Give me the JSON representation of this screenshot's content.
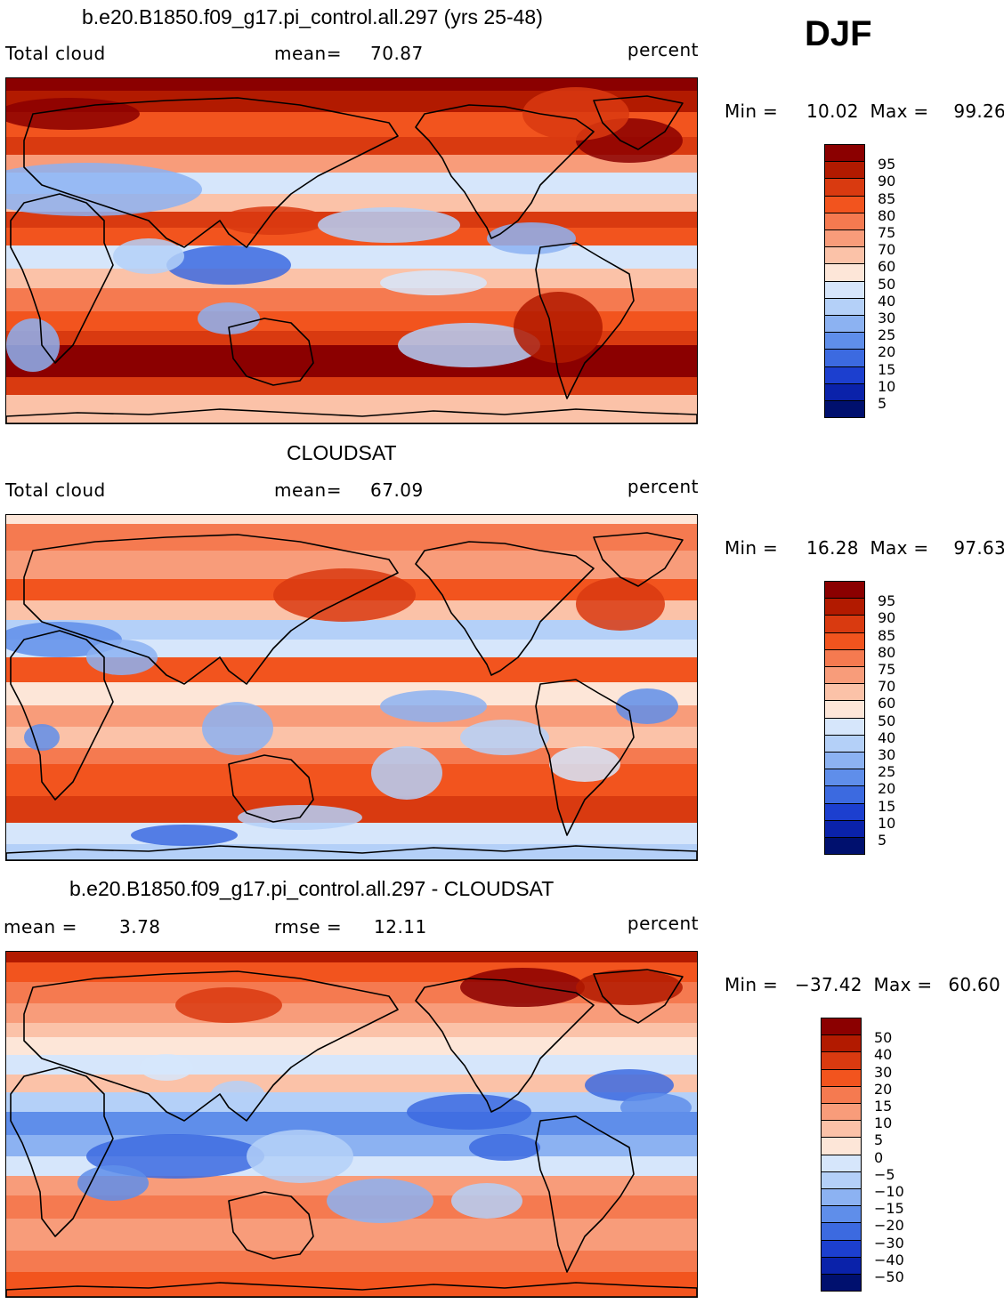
{
  "season": "DJF",
  "panels": [
    {
      "title": "b.e20.B1850.f09_g17.pi_control.all.297 (yrs 25-48)",
      "left_label": "Total cloud",
      "center_label": "mean=",
      "center_value": "70.87",
      "units": "percent",
      "min_label": "Min =",
      "min_value": "10.02",
      "max_label": "Max =",
      "max_value": "99.26",
      "colorbar_labels": [
        "95",
        "90",
        "85",
        "80",
        "75",
        "70",
        "60",
        "50",
        "40",
        "30",
        "25",
        "20",
        "15",
        "10",
        "5"
      ]
    },
    {
      "title": "CLOUDSAT",
      "left_label": "Total cloud",
      "center_label": "mean=",
      "center_value": "67.09",
      "units": "percent",
      "min_label": "Min =",
      "min_value": "16.28",
      "max_label": "Max =",
      "max_value": "97.63",
      "colorbar_labels": [
        "95",
        "90",
        "85",
        "80",
        "75",
        "70",
        "60",
        "50",
        "40",
        "30",
        "25",
        "20",
        "15",
        "10",
        "5"
      ]
    },
    {
      "title": "b.e20.B1850.f09_g17.pi_control.all.297 - CLOUDSAT",
      "left_label": "mean =",
      "left_value": "3.78",
      "center_label": "rmse =",
      "center_value": "12.11",
      "units": "percent",
      "min_label": "Min =",
      "min_value": "−37.42",
      "max_label": "Max =",
      "max_value": "60.60",
      "colorbar_labels": [
        "50",
        "40",
        "30",
        "20",
        "15",
        "10",
        "5",
        "0",
        "−5",
        "−10",
        "−15",
        "−20",
        "−30",
        "−40",
        "−50"
      ]
    }
  ],
  "colors": {
    "colorbar_top_to_bottom": [
      "#8b0000",
      "#b21a00",
      "#d93a10",
      "#f2541e",
      "#f57a50",
      "#f89c7a",
      "#fbc2a8",
      "#fde6d8",
      "#d6e6fb",
      "#b4d0f8",
      "#8cb2f2",
      "#5f8eea",
      "#3c6ae0",
      "#1c3fcf",
      "#0a22aa",
      "#00106e"
    ],
    "land_outline": "#000000"
  }
}
